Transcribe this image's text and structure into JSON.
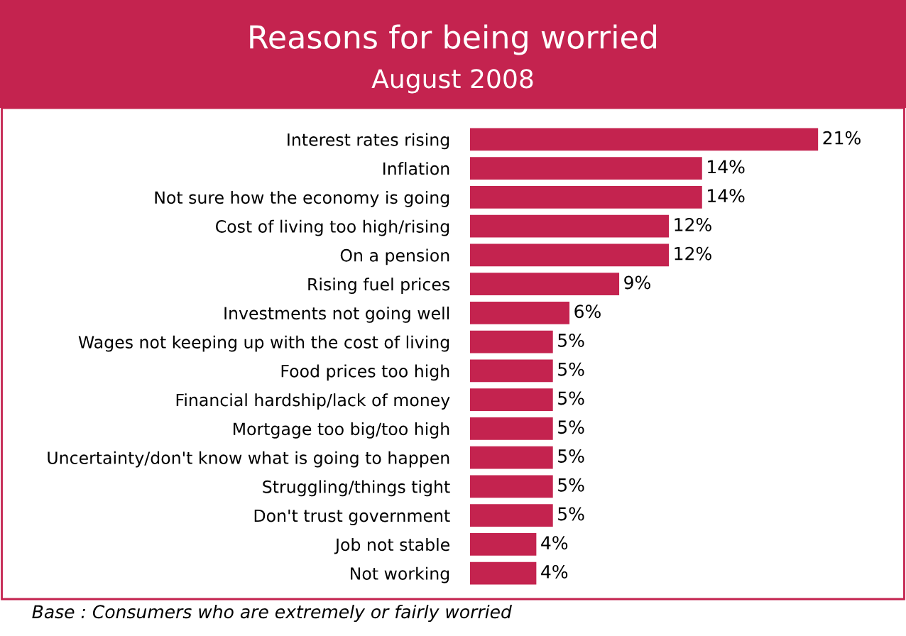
{
  "chart_data": {
    "type": "bar",
    "orientation": "horizontal",
    "title": "Reasons for being worried",
    "subtitle": "August 2008",
    "categories": [
      "Interest rates rising",
      "Inflation",
      "Not sure how the economy is going",
      "Cost of living too high/rising",
      "On a pension",
      "Rising fuel prices",
      "Investments not going well",
      "Wages not keeping up with the cost of living",
      "Food prices too high",
      "Financial hardship/lack of money",
      "Mortgage too big/too high",
      "Uncertainty/don't know what is going to happen",
      "Struggling/things tight",
      "Don't trust government",
      "Job not stable",
      "Not working"
    ],
    "values": [
      21,
      14,
      14,
      12,
      12,
      9,
      6,
      5,
      5,
      5,
      5,
      5,
      5,
      5,
      4,
      4
    ],
    "value_labels": [
      "21%",
      "14%",
      "14%",
      "12%",
      "12%",
      "9%",
      "6%",
      "5%",
      "5%",
      "5%",
      "5%",
      "5%",
      "5%",
      "5%",
      "4%",
      "4%"
    ],
    "color": "#c4234f",
    "tick_labels": "y",
    "grid": false,
    "legend": false,
    "annotations": [
      "Base : Consumers who are extremely or fairly worried"
    ]
  }
}
